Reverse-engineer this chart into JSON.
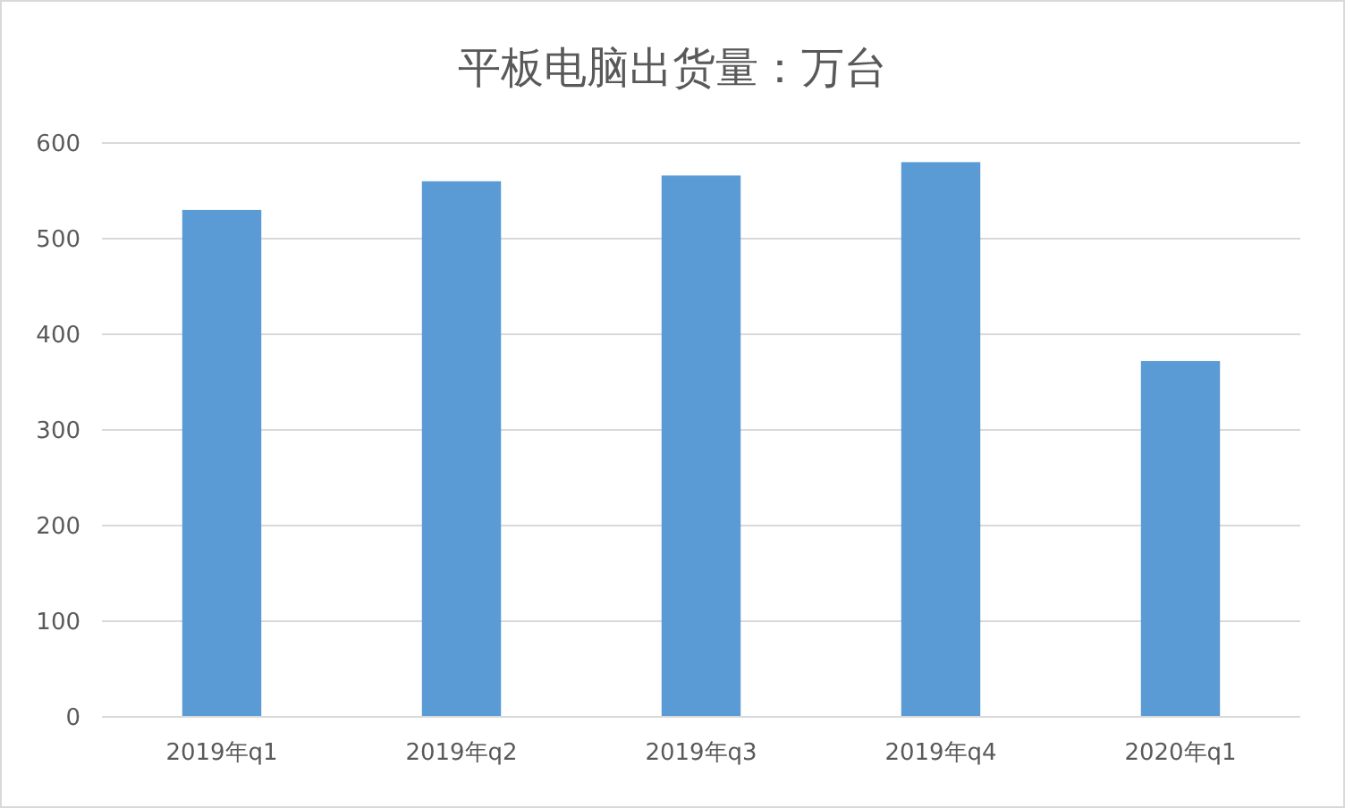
{
  "chart_data": {
    "type": "bar",
    "title": "平板电脑出货量：万台",
    "categories": [
      "2019年q1",
      "2019年q2",
      "2019年q3",
      "2019年q4",
      "2020年q1"
    ],
    "values": [
      530,
      560,
      566,
      580,
      372
    ],
    "color": "#5b9bd5",
    "ylim": [
      0,
      600
    ],
    "yticks": [
      0,
      100,
      200,
      300,
      400,
      500,
      600
    ],
    "grid": "y"
  }
}
